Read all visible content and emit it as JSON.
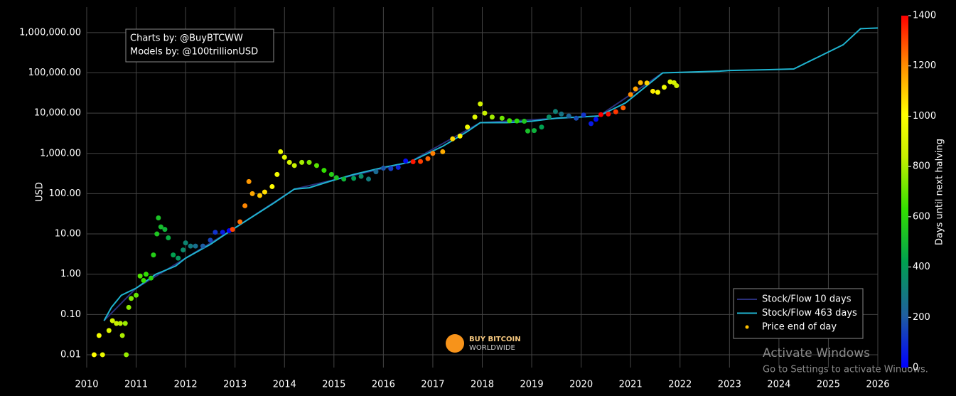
{
  "chart_data": {
    "type": "scatter",
    "y_axis_label": "USD",
    "log_y": true,
    "grid": true,
    "xlim": [
      2010,
      2026
    ],
    "xticks": [
      2010,
      2011,
      2012,
      2013,
      2014,
      2015,
      2016,
      2017,
      2018,
      2019,
      2020,
      2021,
      2022,
      2023,
      2024,
      2025,
      2026
    ],
    "ylim": [
      0.0048,
      4300000
    ],
    "yticks": [
      {
        "value": 0.01,
        "label": "0.01"
      },
      {
        "value": 0.1,
        "label": "0.10"
      },
      {
        "value": 1,
        "label": "1.00"
      },
      {
        "value": 10,
        "label": "10.00"
      },
      {
        "value": 100,
        "label": "100.00"
      },
      {
        "value": 1000,
        "label": "1,000.00"
      },
      {
        "value": 10000,
        "label": "10,000.00"
      },
      {
        "value": 100000,
        "label": "100,000.00"
      },
      {
        "value": 1000000,
        "label": "1,000,000.00"
      }
    ],
    "legend_position": "bottom-right",
    "annotations": [
      "Charts by: @BuyBTCWW",
      "Models by: @100trillionUSD"
    ],
    "logo": [
      "BUY BITCOIN",
      "WORLDWIDE"
    ],
    "watermark": [
      "Activate Windows",
      "Go to Settings to activate Windows."
    ],
    "colorbar": {
      "title": "Days until next halving",
      "range": [
        0,
        1400
      ],
      "ticks": [
        0,
        200,
        400,
        600,
        800,
        1000,
        1200,
        1400
      ],
      "colorscale": [
        [
          0,
          "#0000ff"
        ],
        [
          0.15,
          "#1f5f9f"
        ],
        [
          0.3,
          "#00a050"
        ],
        [
          0.45,
          "#33e000"
        ],
        [
          0.6,
          "#c8f000"
        ],
        [
          0.72,
          "#ffff00"
        ],
        [
          0.86,
          "#ff8c00"
        ],
        [
          1,
          "#ff0000"
        ]
      ]
    },
    "series": [
      {
        "name": "Stock/Flow 10 days",
        "color": "#2a2f7a",
        "mode": "lines",
        "x": [
          2010.35,
          2011.0,
          2012.0,
          2012.91,
          2014.2,
          2016.52,
          2017.96,
          2020.36,
          2021.65
        ],
        "values": [
          0.07,
          0.45,
          2.5,
          12,
          130,
          600,
          5800,
          8500,
          100000
        ]
      },
      {
        "name": "Stock/Flow 463 days",
        "color": "#1fb3cf",
        "mode": "lines",
        "x": [
          2010.35,
          2010.5,
          2010.7,
          2011.0,
          2011.4,
          2011.8,
          2012.0,
          2012.5,
          2012.91,
          2013.5,
          2013.8,
          2014.2,
          2014.5,
          2014.9,
          2015.4,
          2016.0,
          2016.52,
          2017.2,
          2017.7,
          2017.96,
          2018.5,
          2019.0,
          2019.5,
          2020.36,
          2020.9,
          2021.3,
          2021.65,
          2022.8,
          2023.0,
          2023.8,
          2024.3,
          2024.8,
          2025.3,
          2025.65,
          2026.0
        ],
        "values": [
          0.07,
          0.15,
          0.3,
          0.45,
          1.0,
          1.6,
          2.5,
          5.5,
          12,
          35,
          60,
          130,
          140,
          200,
          300,
          450,
          600,
          1500,
          3500,
          5800,
          5800,
          6300,
          7500,
          8500,
          18000,
          45000,
          100000,
          110000,
          115000,
          120000,
          125000,
          250000,
          500000,
          1250000,
          1300000
        ]
      },
      {
        "name": "Price end of day",
        "color": "#ffc000",
        "mode": "markers",
        "x": [
          2010.15,
          2010.25,
          2010.32,
          2010.45,
          2010.52,
          2010.6,
          2010.68,
          2010.72,
          2010.78,
          2010.8,
          2010.85,
          2010.9,
          2011.0,
          2011.08,
          2011.15,
          2011.2,
          2011.3,
          2011.35,
          2011.42,
          2011.45,
          2011.5,
          2011.58,
          2011.65,
          2011.75,
          2011.85,
          2011.95,
          2012.0,
          2012.1,
          2012.2,
          2012.35,
          2012.5,
          2012.6,
          2012.75,
          2012.88,
          2012.95,
          2013.1,
          2013.2,
          2013.28,
          2013.35,
          2013.5,
          2013.6,
          2013.75,
          2013.85,
          2013.92,
          2014.0,
          2014.1,
          2014.2,
          2014.35,
          2014.5,
          2014.65,
          2014.8,
          2014.95,
          2015.05,
          2015.2,
          2015.4,
          2015.55,
          2015.7,
          2015.85,
          2016.0,
          2016.15,
          2016.3,
          2016.45,
          2016.6,
          2016.75,
          2016.9,
          2017.0,
          2017.2,
          2017.4,
          2017.55,
          2017.7,
          2017.85,
          2017.96,
          2018.05,
          2018.2,
          2018.4,
          2018.55,
          2018.7,
          2018.85,
          2018.92,
          2019.05,
          2019.2,
          2019.35,
          2019.48,
          2019.6,
          2019.75,
          2019.9,
          2020.05,
          2020.2,
          2020.3,
          2020.4,
          2020.55,
          2020.7,
          2020.85,
          2021.0,
          2021.1,
          2021.2,
          2021.33,
          2021.45,
          2021.55,
          2021.68,
          2021.8,
          2021.88,
          2021.93
        ],
        "values": [
          0.01,
          0.03,
          0.01,
          0.04,
          0.07,
          0.06,
          0.06,
          0.03,
          0.06,
          0.01,
          0.15,
          0.25,
          0.3,
          0.9,
          0.7,
          1.0,
          0.8,
          3,
          10,
          25,
          15,
          13,
          8,
          3,
          2.5,
          4,
          6,
          5,
          5,
          5,
          7,
          11,
          11,
          12,
          13,
          20,
          50,
          200,
          100,
          90,
          110,
          150,
          300,
          1100,
          800,
          600,
          500,
          600,
          600,
          500,
          380,
          300,
          250,
          230,
          240,
          270,
          230,
          350,
          430,
          420,
          450,
          650,
          620,
          630,
          740,
          1000,
          1100,
          2300,
          2700,
          4500,
          8000,
          17000,
          10000,
          8000,
          7500,
          6500,
          6400,
          6300,
          3600,
          3700,
          4500,
          8000,
          11000,
          9500,
          8500,
          7500,
          9000,
          5500,
          7000,
          9200,
          9500,
          10800,
          13500,
          29000,
          40000,
          57000,
          56000,
          35000,
          33000,
          44000,
          60000,
          57000,
          48000
        ],
        "color_values": [
          1007,
          971,
          945,
          898,
          872,
          843,
          814,
          800,
          777,
          770,
          752,
          734,
          697,
          668,
          642,
          624,
          588,
          569,
          544,
          533,
          515,
          485,
          460,
          423,
          387,
          350,
          332,
          296,
          259,
          204,
          150,
          113,
          58,
          11,
          1303,
          1248,
          1212,
          1183,
          1157,
          1102,
          1066,
          1011,
          975,
          950,
          920,
          884,
          847,
          792,
          737,
          683,
          628,
          573,
          537,
          482,
          409,
          354,
          299,
          245,
          190,
          135,
          80,
          26,
          1369,
          1314,
          1259,
          1223,
          1150,
          1077,
          1022,
          967,
          913,
          873,
          840,
          785,
          712,
          657,
          603,
          548,
          522,
          475,
          420,
          365,
          321,
          277,
          223,
          168,
          113,
          58,
          22,
          1400,
          1380,
          1325,
          1270,
          1205,
          1168,
          1132,
          1084,
          1040,
          1004,
          957,
          913,
          884,
          865
        ]
      }
    ]
  }
}
